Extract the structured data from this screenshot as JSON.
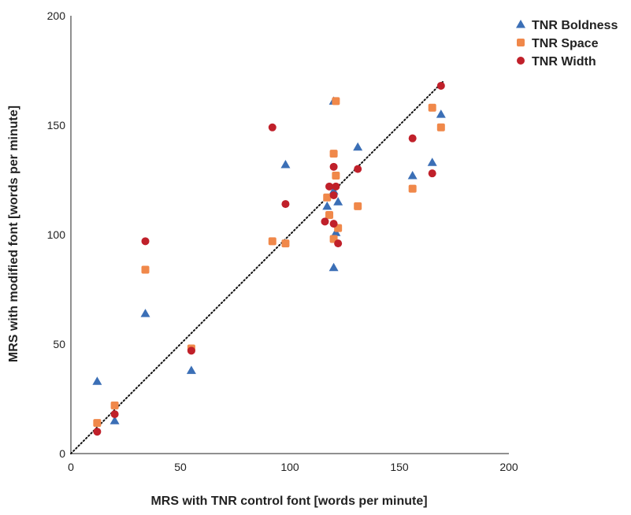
{
  "chart_data": {
    "type": "scatter",
    "xlabel": "MRS with TNR control font [words per minute]",
    "ylabel": "MRS with modified font [words per minute]",
    "xlim": [
      0,
      200
    ],
    "ylim": [
      0,
      200
    ],
    "xticks": [
      0,
      50,
      100,
      150,
      200
    ],
    "yticks": [
      0,
      50,
      100,
      150,
      200
    ],
    "grid": false,
    "legend_position": "top-right",
    "reference_line": {
      "style": "dotted",
      "color": "#111111",
      "from": [
        0,
        0
      ],
      "to": [
        170,
        170
      ]
    },
    "series": [
      {
        "name": "TNR Boldness",
        "marker": "triangle",
        "color": "#3b6fb6",
        "points": [
          [
            12,
            33
          ],
          [
            20,
            15
          ],
          [
            34,
            64
          ],
          [
            55,
            38
          ],
          [
            98,
            132
          ],
          [
            117,
            113
          ],
          [
            120,
            85
          ],
          [
            120,
            120
          ],
          [
            120,
            161
          ],
          [
            121,
            101
          ],
          [
            122,
            115
          ],
          [
            131,
            140
          ],
          [
            156,
            127
          ],
          [
            165,
            133
          ],
          [
            169,
            155
          ]
        ]
      },
      {
        "name": "TNR Space",
        "marker": "square",
        "color": "#f0884a",
        "points": [
          [
            12,
            14
          ],
          [
            20,
            22
          ],
          [
            34,
            84
          ],
          [
            55,
            48
          ],
          [
            92,
            97
          ],
          [
            98,
            96
          ],
          [
            117,
            117
          ],
          [
            118,
            109
          ],
          [
            120,
            98
          ],
          [
            120,
            137
          ],
          [
            121,
            127
          ],
          [
            121,
            161
          ],
          [
            122,
            103
          ],
          [
            131,
            113
          ],
          [
            156,
            121
          ],
          [
            165,
            158
          ],
          [
            169,
            149
          ]
        ]
      },
      {
        "name": "TNR Width",
        "marker": "circle",
        "color": "#c0202a",
        "points": [
          [
            12,
            10
          ],
          [
            20,
            18
          ],
          [
            34,
            97
          ],
          [
            55,
            47
          ],
          [
            92,
            149
          ],
          [
            98,
            114
          ],
          [
            116,
            106
          ],
          [
            118,
            122
          ],
          [
            120,
            105
          ],
          [
            120,
            118
          ],
          [
            120,
            131
          ],
          [
            121,
            122
          ],
          [
            122,
            96
          ],
          [
            131,
            130
          ],
          [
            156,
            144
          ],
          [
            165,
            128
          ],
          [
            169,
            168
          ]
        ]
      }
    ]
  }
}
